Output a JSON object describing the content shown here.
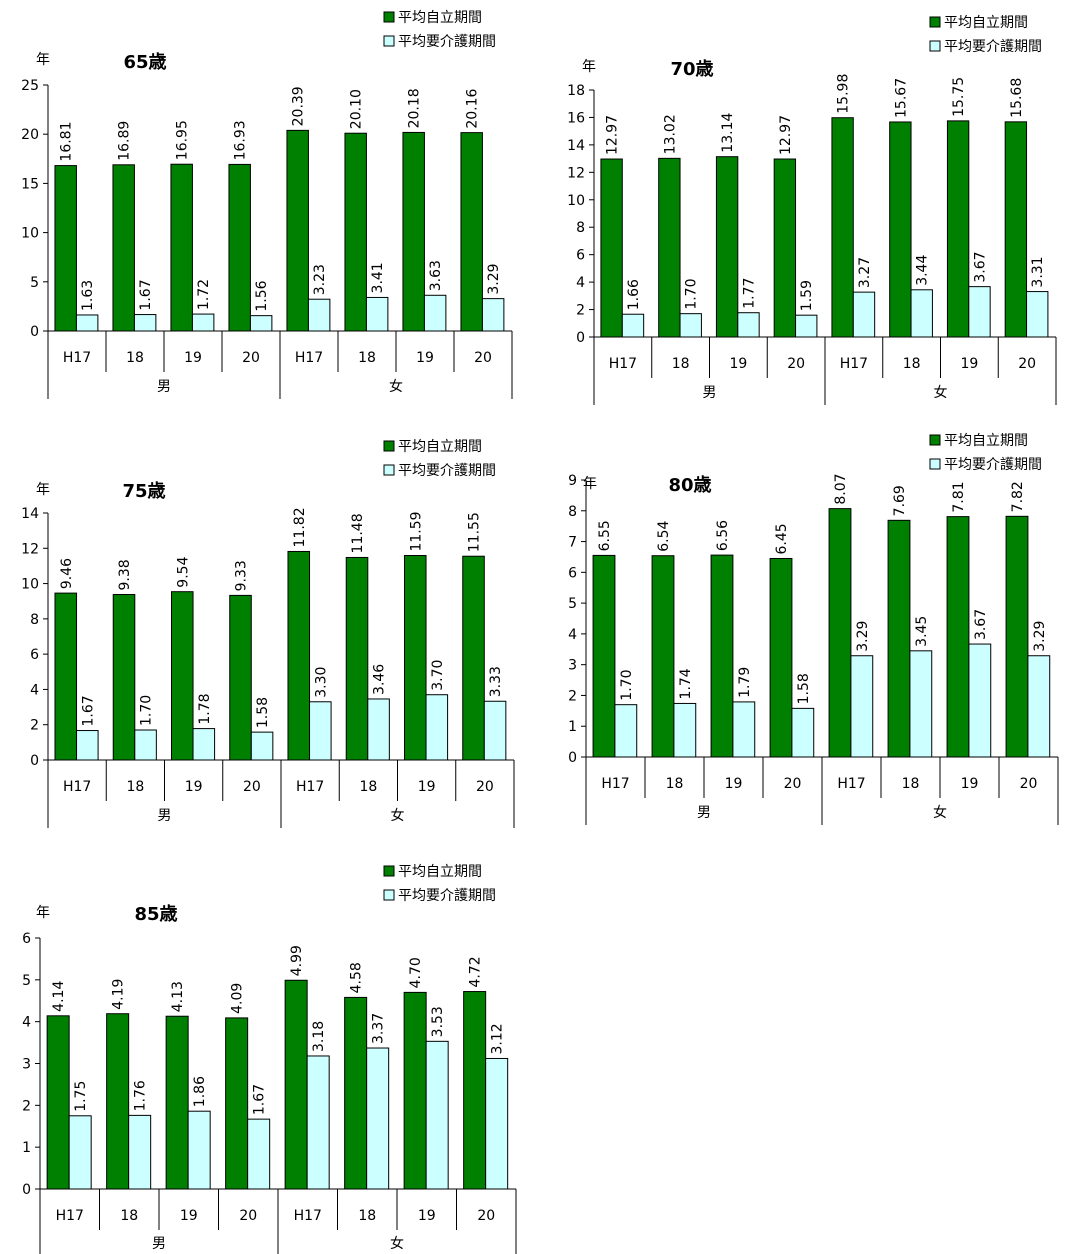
{
  "colors": {
    "independent": "#008000",
    "care": "#ccffff",
    "axis": "#000000",
    "bar_stroke": "#000000"
  },
  "legend": {
    "independent": "平均自立期間",
    "care": "平均要介護期間"
  },
  "chart_data": [
    {
      "type": "bar",
      "title": "65歳",
      "ylabel": "年",
      "ylim": [
        0,
        25
      ],
      "yticks": [
        0,
        5,
        10,
        15,
        20,
        25
      ],
      "categories": [
        "H17",
        "18",
        "19",
        "20",
        "H17",
        "18",
        "19",
        "20"
      ],
      "groups": [
        {
          "label": "男",
          "span": 4
        },
        {
          "label": "女",
          "span": 4
        }
      ],
      "series": [
        {
          "name": "平均自立期間",
          "values": [
            16.81,
            16.89,
            16.95,
            16.93,
            20.39,
            20.1,
            20.18,
            20.16
          ],
          "labels": [
            "16.81",
            "16.89",
            "16.95",
            "16.93",
            "20.39",
            "20.10",
            "20.18",
            "20.16"
          ]
        },
        {
          "name": "平均要介護期間",
          "values": [
            1.63,
            1.67,
            1.72,
            1.56,
            3.23,
            3.41,
            3.63,
            3.29
          ],
          "labels": [
            "1.63",
            "1.67",
            "1.72",
            "1.56",
            "3.23",
            "3.41",
            "3.63",
            "3.29"
          ]
        }
      ]
    },
    {
      "type": "bar",
      "title": "70歳",
      "ylabel": "年",
      "ylim": [
        0,
        18
      ],
      "yticks": [
        0,
        2,
        4,
        6,
        8,
        10,
        12,
        14,
        16,
        18
      ],
      "categories": [
        "H17",
        "18",
        "19",
        "20",
        "H17",
        "18",
        "19",
        "20"
      ],
      "groups": [
        {
          "label": "男",
          "span": 4
        },
        {
          "label": "女",
          "span": 4
        }
      ],
      "series": [
        {
          "name": "平均自立期間",
          "values": [
            12.97,
            13.02,
            13.14,
            12.97,
            15.98,
            15.67,
            15.75,
            15.68
          ],
          "labels": [
            "12.97",
            "13.02",
            "13.14",
            "12.97",
            "15.98",
            "15.67",
            "15.75",
            "15.68"
          ]
        },
        {
          "name": "平均要介護期間",
          "values": [
            1.66,
            1.7,
            1.77,
            1.59,
            3.27,
            3.44,
            3.67,
            3.31
          ],
          "labels": [
            "1.66",
            "1.70",
            "1.77",
            "1.59",
            "3.27",
            "3.44",
            "3.67",
            "3.31"
          ]
        }
      ]
    },
    {
      "type": "bar",
      "title": "75歳",
      "ylabel": "年",
      "ylim": [
        0,
        14
      ],
      "yticks": [
        0,
        2,
        4,
        6,
        8,
        10,
        12,
        14
      ],
      "categories": [
        "H17",
        "18",
        "19",
        "20",
        "H17",
        "18",
        "19",
        "20"
      ],
      "groups": [
        {
          "label": "男",
          "span": 4
        },
        {
          "label": "女",
          "span": 4
        }
      ],
      "series": [
        {
          "name": "平均自立期間",
          "values": [
            9.46,
            9.38,
            9.54,
            9.33,
            11.82,
            11.48,
            11.59,
            11.55
          ],
          "labels": [
            "9.46",
            "9.38",
            "9.54",
            "9.33",
            "11.82",
            "11.48",
            "11.59",
            "11.55"
          ]
        },
        {
          "name": "平均要介護期間",
          "values": [
            1.67,
            1.7,
            1.78,
            1.58,
            3.3,
            3.46,
            3.7,
            3.33
          ],
          "labels": [
            "1.67",
            "1.70",
            "1.78",
            "1.58",
            "3.30",
            "3.46",
            "3.70",
            "3.33"
          ]
        }
      ]
    },
    {
      "type": "bar",
      "title": "80歳",
      "ylabel": "年",
      "ylim": [
        0,
        9
      ],
      "yticks": [
        0,
        1,
        2,
        3,
        4,
        5,
        6,
        7,
        8,
        9
      ],
      "categories": [
        "H17",
        "18",
        "19",
        "20",
        "H17",
        "18",
        "19",
        "20"
      ],
      "groups": [
        {
          "label": "男",
          "span": 4
        },
        {
          "label": "女",
          "span": 4
        }
      ],
      "series": [
        {
          "name": "平均自立期間",
          "values": [
            6.55,
            6.54,
            6.56,
            6.45,
            8.07,
            7.69,
            7.81,
            7.82
          ],
          "labels": [
            "6.55",
            "6.54",
            "6.56",
            "6.45",
            "8.07",
            "7.69",
            "7.81",
            "7.82"
          ]
        },
        {
          "name": "平均要介護期間",
          "values": [
            1.7,
            1.74,
            1.79,
            1.58,
            3.29,
            3.45,
            3.67,
            3.29
          ],
          "labels": [
            "1.70",
            "1.74",
            "1.79",
            "1.58",
            "3.29",
            "3.45",
            "3.67",
            "3.29"
          ]
        }
      ]
    },
    {
      "type": "bar",
      "title": "85歳",
      "ylabel": "年",
      "ylim": [
        0,
        6
      ],
      "yticks": [
        0,
        1,
        2,
        3,
        4,
        5,
        6
      ],
      "categories": [
        "H17",
        "18",
        "19",
        "20",
        "H17",
        "18",
        "19",
        "20"
      ],
      "groups": [
        {
          "label": "男",
          "span": 4
        },
        {
          "label": "女",
          "span": 4
        }
      ],
      "series": [
        {
          "name": "平均自立期間",
          "values": [
            4.14,
            4.19,
            4.13,
            4.09,
            4.99,
            4.58,
            4.7,
            4.72
          ],
          "labels": [
            "4.14",
            "4.19",
            "4.13",
            "4.09",
            "4.99",
            "4.58",
            "4.70",
            "4.72"
          ]
        },
        {
          "name": "平均要介護期間",
          "values": [
            1.75,
            1.76,
            1.86,
            1.67,
            3.18,
            3.37,
            3.53,
            3.12
          ],
          "labels": [
            "1.75",
            "1.76",
            "1.86",
            "1.67",
            "3.18",
            "3.37",
            "3.53",
            "3.12"
          ]
        }
      ]
    }
  ]
}
